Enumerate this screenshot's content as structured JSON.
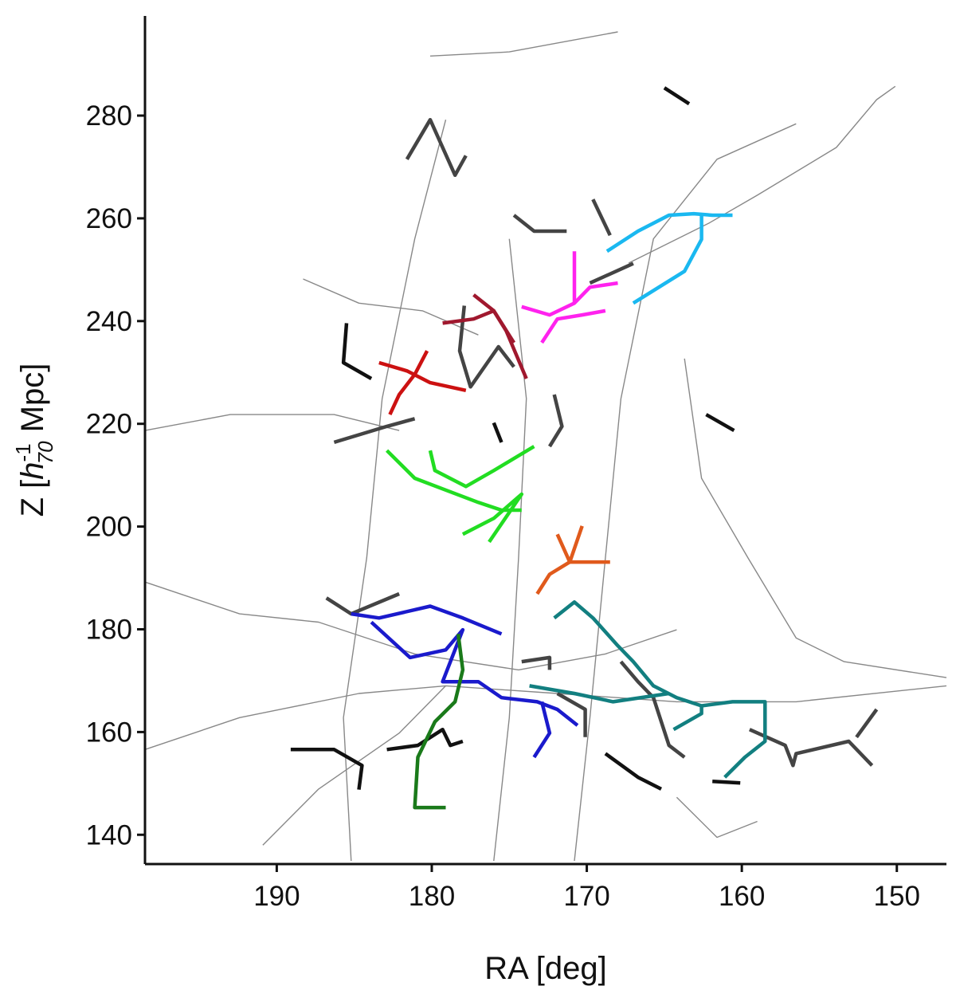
{
  "chart_data": {
    "type": "line",
    "xlabel": "RA [deg]",
    "ylabel_parts": [
      "Z  [",
      "h",
      "-1",
      "70",
      " Mpc]"
    ],
    "xlim": [
      198.5,
      146.8
    ],
    "xticks": [
      190,
      180,
      170,
      160,
      150
    ],
    "ylim": [
      134.3,
      299.4
    ],
    "yticks": [
      140,
      160,
      180,
      200,
      220,
      240,
      260,
      280
    ],
    "series": [
      {
        "color": "#888888",
        "x": [
          180.1,
          175.0,
          168.0
        ],
        "y": [
          291.6,
          292.4,
          296.3
        ]
      },
      {
        "color": "#888888",
        "x": [
          150.1,
          151.3,
          153.9,
          159.0,
          162.1,
          167.3
        ],
        "y": [
          285.7,
          283.1,
          273.8,
          264.5,
          259.1,
          251.3
        ]
      },
      {
        "color": "#888888",
        "x": [
          198.5,
          193.0,
          186.3,
          182.1
        ],
        "y": [
          218.7,
          221.8,
          221.8,
          218.7
        ]
      },
      {
        "color": "#888888",
        "x": [
          198.5,
          192.4,
          187.3,
          181.1,
          174.4,
          168.8,
          164.2
        ],
        "y": [
          189.2,
          183.0,
          181.4,
          175.2,
          172.1,
          175.2,
          179.9
        ]
      },
      {
        "color": "#888888",
        "x": [
          198.5,
          192.4,
          184.7,
          179.1,
          171.9,
          164.2,
          156.5,
          146.8
        ],
        "y": [
          156.6,
          162.8,
          167.5,
          169.0,
          167.5,
          165.9,
          165.9,
          169.0
        ]
      },
      {
        "color": "#888888",
        "x": [
          190.9,
          187.3,
          182.1,
          179.1
        ],
        "y": [
          138.0,
          148.9,
          159.8,
          169.0
        ]
      },
      {
        "color": "#888888",
        "x": [
          185.2,
          185.7,
          184.2,
          183.2,
          181.1,
          179.1
        ],
        "y": [
          134.9,
          162.8,
          193.9,
          224.9,
          256.0,
          279.2
        ]
      },
      {
        "color": "#888888",
        "x": [
          170.8,
          169.8,
          168.8,
          167.8,
          165.7,
          161.6,
          156.5
        ],
        "y": [
          134.9,
          162.8,
          193.9,
          224.9,
          256.0,
          271.5,
          278.4
        ]
      },
      {
        "color": "#888888",
        "x": [
          176.0,
          175.0,
          174.4,
          173.9,
          175.0
        ],
        "y": [
          134.9,
          162.8,
          193.9,
          224.9,
          256.0
        ]
      },
      {
        "color": "#888888",
        "x": [
          188.3,
          184.7,
          180.6,
          177.0
        ],
        "y": [
          248.2,
          243.5,
          242.0,
          237.3
        ]
      },
      {
        "color": "#888888",
        "x": [
          164.2,
          161.6,
          159.0
        ],
        "y": [
          147.3,
          139.5,
          142.6
        ]
      },
      {
        "color": "#888888",
        "x": [
          163.7,
          162.6,
          159.6,
          156.5,
          153.4,
          146.8
        ],
        "y": [
          232.7,
          209.4,
          193.9,
          178.3,
          173.7,
          170.6
        ]
      },
      {
        "color": "#111111",
        "x": [
          185.5,
          185.7,
          183.9
        ],
        "y": [
          239.6,
          231.9,
          228.8
        ]
      },
      {
        "color": "#111111",
        "x": [
          189.1,
          186.3,
          184.5,
          184.7
        ],
        "y": [
          156.6,
          156.6,
          153.5,
          148.8
        ]
      },
      {
        "color": "#111111",
        "x": [
          182.9,
          180.9,
          179.3,
          178.8,
          178.0
        ],
        "y": [
          156.6,
          157.4,
          160.5,
          157.4,
          158.2
        ]
      },
      {
        "color": "#111111",
        "x": [
          168.8,
          166.7,
          165.2
        ],
        "y": [
          155.8,
          151.2,
          148.9
        ]
      },
      {
        "color": "#111111",
        "x": [
          161.9,
          160.1
        ],
        "y": [
          150.4,
          150.1
        ]
      },
      {
        "color": "#111111",
        "x": [
          165.0,
          163.4
        ],
        "y": [
          285.4,
          282.3
        ]
      },
      {
        "color": "#111111",
        "x": [
          162.3,
          160.5
        ],
        "y": [
          221.8,
          218.7
        ]
      },
      {
        "color": "#111111",
        "x": [
          176.0,
          175.5
        ],
        "y": [
          220.2,
          216.4
        ]
      },
      {
        "color": "#444444",
        "x": [
          181.6,
          180.1,
          178.5,
          177.8
        ],
        "y": [
          271.5,
          279.2,
          268.4,
          272.2
        ]
      },
      {
        "color": "#444444",
        "x": [
          174.7,
          173.4,
          171.3
        ],
        "y": [
          260.6,
          257.5,
          257.5
        ]
      },
      {
        "color": "#444444",
        "x": [
          169.6,
          168.5
        ],
        "y": [
          263.7,
          256.7
        ]
      },
      {
        "color": "#444444",
        "x": [
          169.8,
          167.0
        ],
        "y": [
          247.4,
          251.2
        ]
      },
      {
        "color": "#444444",
        "x": [
          177.9,
          178.2,
          177.5,
          175.7,
          174.7
        ],
        "y": [
          243.0,
          234.2,
          227.2,
          235.0,
          231.1
        ]
      },
      {
        "color": "#444444",
        "x": [
          186.3,
          182.9,
          181.1
        ],
        "y": [
          216.4,
          219.5,
          221.0
        ]
      },
      {
        "color": "#444444",
        "x": [
          172.1,
          171.6,
          172.4
        ],
        "y": [
          225.7,
          219.5,
          215.6
        ]
      },
      {
        "color": "#444444",
        "x": [
          186.8,
          185.2,
          182.1
        ],
        "y": [
          186.1,
          183.0,
          186.9
        ]
      },
      {
        "color": "#444444",
        "x": [
          174.2,
          172.4,
          172.4
        ],
        "y": [
          173.7,
          174.5,
          172.1
        ]
      },
      {
        "color": "#444444",
        "x": [
          167.8,
          166.7,
          165.7,
          164.7,
          163.7
        ],
        "y": [
          173.7,
          169.8,
          166.7,
          157.4,
          155.1
        ]
      },
      {
        "color": "#444444",
        "x": [
          159.5,
          157.2,
          156.7,
          156.5,
          153.1,
          151.6
        ],
        "y": [
          160.5,
          157.4,
          153.5,
          155.8,
          158.2,
          153.5
        ]
      },
      {
        "color": "#444444",
        "x": [
          152.6,
          151.3
        ],
        "y": [
          159.0,
          164.4
        ]
      },
      {
        "color": "#444444",
        "x": [
          171.9,
          170.1,
          170.1
        ],
        "y": [
          167.5,
          164.4,
          159.0
        ]
      },
      {
        "color": "#1ab8f0",
        "x": [
          168.7,
          166.7,
          164.7,
          163.1,
          161.9,
          160.6
        ],
        "y": [
          253.6,
          257.5,
          260.6,
          260.9,
          260.6,
          260.6
        ]
      },
      {
        "color": "#1ab8f0",
        "x": [
          167.0,
          163.7,
          162.6,
          162.6
        ],
        "y": [
          243.5,
          249.7,
          255.9,
          260.6
        ]
      },
      {
        "color": "#ff22ee",
        "x": [
          174.2,
          172.4,
          170.8,
          169.8,
          168.0
        ],
        "y": [
          242.8,
          241.2,
          243.5,
          246.6,
          247.4
        ]
      },
      {
        "color": "#ff22ee",
        "x": [
          172.9,
          171.9,
          170.3,
          168.8
        ],
        "y": [
          235.8,
          240.4,
          241.2,
          242.0
        ]
      },
      {
        "color": "#ff22ee",
        "x": [
          170.8,
          170.8
        ],
        "y": [
          253.6,
          243.5
        ]
      },
      {
        "color": "#a0182e",
        "x": [
          179.3,
          177.3,
          176.0,
          175.2,
          173.9
        ],
        "y": [
          239.6,
          240.4,
          242.0,
          238.1,
          228.8
        ]
      },
      {
        "color": "#a0182e",
        "x": [
          177.3,
          176.0,
          174.7
        ],
        "y": [
          245.1,
          242.0,
          235.8
        ]
      },
      {
        "color": "#cc1111",
        "x": [
          183.4,
          181.6,
          180.1,
          177.8
        ],
        "y": [
          231.9,
          230.3,
          228.0,
          226.5
        ]
      },
      {
        "color": "#cc1111",
        "x": [
          182.7,
          182.1,
          181.1,
          180.3
        ],
        "y": [
          221.8,
          225.7,
          229.6,
          234.2
        ]
      },
      {
        "color": "#22dd22",
        "x": [
          182.9,
          181.1,
          179.1,
          177.0,
          175.5,
          174.2
        ],
        "y": [
          214.8,
          209.4,
          207.1,
          204.7,
          203.2,
          203.2
        ]
      },
      {
        "color": "#22dd22",
        "x": [
          180.1,
          179.8,
          177.8,
          176.0,
          173.4
        ],
        "y": [
          214.8,
          210.9,
          207.8,
          210.9,
          215.6
        ]
      },
      {
        "color": "#22dd22",
        "x": [
          178.0,
          176.0,
          174.2,
          176.3
        ],
        "y": [
          198.5,
          201.6,
          206.3,
          197.0
        ]
      },
      {
        "color": "#e05a1c",
        "x": [
          173.2,
          172.4,
          171.1,
          169.8,
          168.5
        ],
        "y": [
          186.9,
          190.7,
          193.1,
          193.1,
          193.1
        ]
      },
      {
        "color": "#e05a1c",
        "x": [
          171.9,
          171.1,
          170.3
        ],
        "y": [
          198.5,
          193.1,
          200.1
        ]
      },
      {
        "color": "#1a1acc",
        "x": [
          185.2,
          183.4,
          180.1,
          178.0,
          175.5
        ],
        "y": [
          183.0,
          182.2,
          184.5,
          182.2,
          179.1
        ]
      },
      {
        "color": "#1a1acc",
        "x": [
          183.9,
          181.4,
          179.1,
          178.0,
          179.3,
          177.0,
          175.5,
          173.2,
          171.9,
          170.6
        ],
        "y": [
          181.4,
          174.5,
          176.0,
          179.9,
          169.8,
          169.8,
          166.7,
          165.9,
          164.4,
          161.3
        ]
      },
      {
        "color": "#1a1acc",
        "x": [
          172.9,
          172.4,
          173.4
        ],
        "y": [
          165.9,
          159.8,
          155.1
        ]
      },
      {
        "color": "#1a7a1a",
        "x": [
          178.3,
          178.0,
          178.5,
          179.8,
          180.9,
          181.1,
          179.1
        ],
        "y": [
          179.1,
          172.1,
          165.9,
          162.0,
          155.1,
          145.3,
          145.3
        ]
      },
      {
        "color": "#127f80",
        "x": [
          172.1,
          170.8,
          169.6,
          168.0,
          167.0,
          165.7,
          164.2,
          162.6,
          160.6,
          158.5,
          158.5,
          159.8,
          161.1
        ],
        "y": [
          182.2,
          185.3,
          182.2,
          176.8,
          173.7,
          169.0,
          166.7,
          165.1,
          165.9,
          165.9,
          158.2,
          155.1,
          151.2
        ]
      },
      {
        "color": "#127f80",
        "x": [
          173.7,
          170.8,
          168.3,
          164.7
        ],
        "y": [
          169.0,
          167.5,
          165.9,
          167.5
        ]
      },
      {
        "color": "#127f80",
        "x": [
          164.4,
          162.6,
          162.6
        ],
        "y": [
          160.5,
          163.6,
          165.1
        ]
      }
    ]
  }
}
